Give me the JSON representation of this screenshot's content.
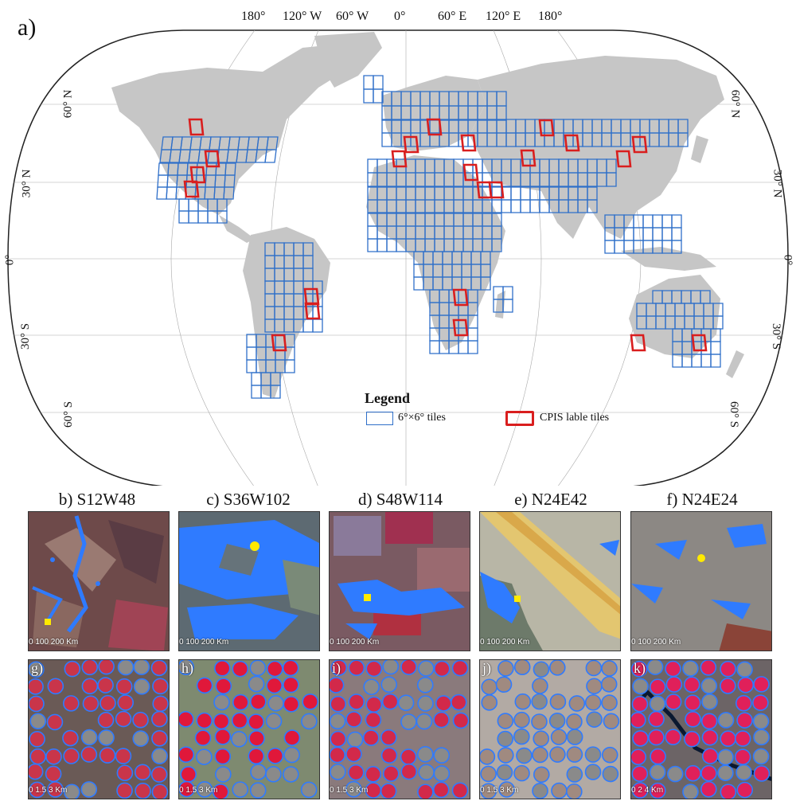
{
  "figure": {
    "panel_a_label": "a)",
    "longitude_labels": [
      "180°",
      "120° W",
      "60° W",
      "0°",
      "60° E",
      "120° E",
      "180°"
    ],
    "latitude_labels_left": [
      "60° N",
      "30° N",
      "0°",
      "30° S",
      "60° S"
    ],
    "latitude_labels_right": [
      "60° N",
      "30° N",
      "0°",
      "30° S",
      "60° S"
    ],
    "legend": {
      "title": "Legend",
      "blue_label": "6°×6° tiles",
      "red_label": "CPIS lable tiles"
    },
    "colors": {
      "land": "#c6c6c6",
      "ocean": "#ffffff",
      "grid_tile": "#2f6fc9",
      "label_tile": "#d91e1e",
      "cpis_detection": "#2f7bff",
      "sample_marker": "#ffea00"
    },
    "tile_panels": [
      {
        "letter": "b)",
        "title": "S12W48",
        "scale": "0  100  200 Km",
        "bg": "#6e4a4a"
      },
      {
        "letter": "c)",
        "title": "S36W102",
        "scale": "0  100  200 Km",
        "bg": "#5d6a72"
      },
      {
        "letter": "d)",
        "title": "S48W114",
        "scale": "0  100  200 Km",
        "bg": "#7a5a62"
      },
      {
        "letter": "e)",
        "title": "N24E42",
        "scale": "0  100  200 Km",
        "bg": "#b8b6a6"
      },
      {
        "letter": "f)",
        "title": "N24E24",
        "scale": "0  100  200 Km",
        "bg": "#8c8884"
      }
    ],
    "zoom_panels": [
      {
        "letter": "g)",
        "scale": "0  1.5  3 Km"
      },
      {
        "letter": "h)",
        "scale": "0  1.5  3 Km"
      },
      {
        "letter": "i)",
        "scale": "0  1.5  3 Km"
      },
      {
        "letter": "j)",
        "scale": "0  1.5  3 Km"
      },
      {
        "letter": "k)",
        "scale": "0  2  4 Km"
      }
    ]
  }
}
